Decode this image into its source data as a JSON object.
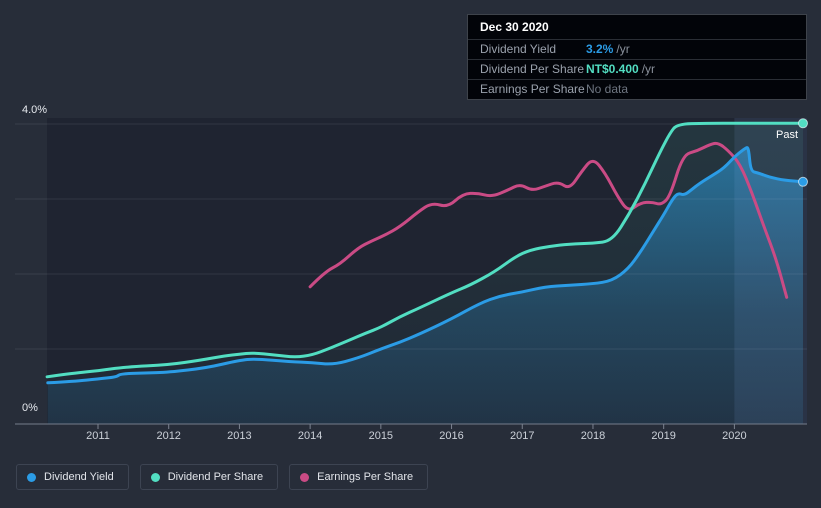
{
  "colors": {
    "dividend_yield": "#2b9ce6",
    "dividend_per_share": "#52dec2",
    "earnings_per_share": "#ca4b85",
    "muted": "#6e7580",
    "tooltip_label": "#9aa1ac",
    "axis_text": "#ccd1d9",
    "plot_background": "#1f2431",
    "page_background": "#272d39"
  },
  "tooltip": {
    "title": "Dec 30 2020",
    "rows": [
      {
        "label": "Dividend Yield",
        "value": "3.2%",
        "suffix": "/yr",
        "value_color_key": "dividend_yield"
      },
      {
        "label": "Dividend Per Share",
        "value": "NT$0.400",
        "suffix": "/yr",
        "value_color_key": "dividend_per_share"
      },
      {
        "label": "Earnings Per Share",
        "value": "No data",
        "suffix": "",
        "value_color_key": "muted"
      }
    ]
  },
  "legend": {
    "items": [
      {
        "label": "Dividend Yield",
        "color_key": "dividend_yield"
      },
      {
        "label": "Dividend Per Share",
        "color_key": "dividend_per_share"
      },
      {
        "label": "Earnings Per Share",
        "color_key": "earnings_per_share"
      }
    ]
  },
  "chart_data": {
    "type": "line",
    "past_label": "Past",
    "past_band_start_year": 2020,
    "x_ticks": [
      2011,
      2012,
      2013,
      2014,
      2015,
      2016,
      2017,
      2018,
      2019,
      2020
    ],
    "x_range": [
      2010.28,
      2021.0
    ],
    "y_axis": {
      "top_label": "4.0%",
      "bottom_label": "0%",
      "min": 0,
      "max": 4,
      "unit": "%",
      "gridlines_pct": [
        0,
        1,
        2,
        3,
        4
      ]
    },
    "notes": "Dividend Per Share plotted on same scale; flat top equals NT$0.400/yr which maps to the 4.0% line. Earnings Per Share has no data after late 2020.",
    "series": [
      {
        "key": "earnings-per-share",
        "name": "Earnings Per Share",
        "color_key": "earnings_per_share",
        "area": false,
        "end_dot": false,
        "points": [
          [
            2014.0,
            1.83
          ],
          [
            2014.21,
            2.03
          ],
          [
            2014.42,
            2.13
          ],
          [
            2014.68,
            2.35
          ],
          [
            2014.87,
            2.44
          ],
          [
            2015.06,
            2.52
          ],
          [
            2015.27,
            2.63
          ],
          [
            2015.53,
            2.83
          ],
          [
            2015.72,
            2.95
          ],
          [
            2015.95,
            2.89
          ],
          [
            2016.16,
            3.07
          ],
          [
            2016.37,
            3.08
          ],
          [
            2016.57,
            3.03
          ],
          [
            2016.8,
            3.12
          ],
          [
            2016.97,
            3.2
          ],
          [
            2017.14,
            3.11
          ],
          [
            2017.32,
            3.17
          ],
          [
            2017.51,
            3.23
          ],
          [
            2017.67,
            3.13
          ],
          [
            2017.84,
            3.37
          ],
          [
            2018.0,
            3.55
          ],
          [
            2018.17,
            3.35
          ],
          [
            2018.35,
            3.03
          ],
          [
            2018.5,
            2.83
          ],
          [
            2018.67,
            2.95
          ],
          [
            2018.84,
            2.96
          ],
          [
            2018.96,
            2.92
          ],
          [
            2019.09,
            3.03
          ],
          [
            2019.27,
            3.59
          ],
          [
            2019.47,
            3.64
          ],
          [
            2019.66,
            3.73
          ],
          [
            2019.77,
            3.75
          ],
          [
            2019.91,
            3.65
          ],
          [
            2020.08,
            3.47
          ],
          [
            2020.25,
            3.08
          ],
          [
            2020.43,
            2.6
          ],
          [
            2020.59,
            2.2
          ],
          [
            2020.74,
            1.69
          ]
        ]
      },
      {
        "key": "dividend-yield",
        "name": "Dividend Yield",
        "color_key": "dividend_yield",
        "area": true,
        "gradient_id": "blueFill",
        "end_dot": true,
        "points": [
          [
            2010.29,
            0.55
          ],
          [
            2010.67,
            0.57
          ],
          [
            2011.0,
            0.6
          ],
          [
            2011.27,
            0.63
          ],
          [
            2011.31,
            0.67
          ],
          [
            2011.66,
            0.68
          ],
          [
            2012.0,
            0.69
          ],
          [
            2012.54,
            0.75
          ],
          [
            2013.0,
            0.85
          ],
          [
            2013.22,
            0.87
          ],
          [
            2013.72,
            0.83
          ],
          [
            2014.03,
            0.82
          ],
          [
            2014.32,
            0.79
          ],
          [
            2014.68,
            0.88
          ],
          [
            2015.0,
            1.0
          ],
          [
            2015.27,
            1.09
          ],
          [
            2015.55,
            1.2
          ],
          [
            2016.0,
            1.4
          ],
          [
            2016.4,
            1.61
          ],
          [
            2016.69,
            1.71
          ],
          [
            2017.0,
            1.76
          ],
          [
            2017.32,
            1.83
          ],
          [
            2017.67,
            1.85
          ],
          [
            2018.0,
            1.87
          ],
          [
            2018.27,
            1.91
          ],
          [
            2018.5,
            2.07
          ],
          [
            2018.67,
            2.29
          ],
          [
            2018.84,
            2.55
          ],
          [
            2019.0,
            2.79
          ],
          [
            2019.12,
            2.99
          ],
          [
            2019.2,
            3.08
          ],
          [
            2019.29,
            3.05
          ],
          [
            2019.39,
            3.12
          ],
          [
            2019.51,
            3.21
          ],
          [
            2019.68,
            3.31
          ],
          [
            2019.85,
            3.41
          ],
          [
            2020.03,
            3.59
          ],
          [
            2020.16,
            3.68
          ],
          [
            2020.2,
            3.69
          ],
          [
            2020.23,
            3.37
          ],
          [
            2020.33,
            3.35
          ],
          [
            2020.5,
            3.29
          ],
          [
            2020.71,
            3.25
          ],
          [
            2020.97,
            3.23
          ]
        ]
      },
      {
        "key": "dividend-per-share",
        "name": "Dividend Per Share",
        "color_key": "dividend_per_share",
        "area": true,
        "gradient_id": "tealFill",
        "end_dot": true,
        "points": [
          [
            2010.28,
            0.63
          ],
          [
            2010.67,
            0.68
          ],
          [
            2011.0,
            0.71
          ],
          [
            2011.38,
            0.76
          ],
          [
            2012.0,
            0.79
          ],
          [
            2012.44,
            0.85
          ],
          [
            2012.8,
            0.91
          ],
          [
            2013.0,
            0.93
          ],
          [
            2013.19,
            0.95
          ],
          [
            2013.5,
            0.92
          ],
          [
            2013.79,
            0.89
          ],
          [
            2014.03,
            0.92
          ],
          [
            2014.28,
            1.01
          ],
          [
            2014.56,
            1.12
          ],
          [
            2014.78,
            1.21
          ],
          [
            2015.0,
            1.29
          ],
          [
            2015.27,
            1.43
          ],
          [
            2015.55,
            1.55
          ],
          [
            2016.0,
            1.75
          ],
          [
            2016.26,
            1.85
          ],
          [
            2016.61,
            2.03
          ],
          [
            2016.9,
            2.23
          ],
          [
            2017.11,
            2.32
          ],
          [
            2017.39,
            2.37
          ],
          [
            2017.67,
            2.4
          ],
          [
            2018.0,
            2.41
          ],
          [
            2018.27,
            2.44
          ],
          [
            2018.52,
            2.81
          ],
          [
            2018.74,
            3.21
          ],
          [
            2018.95,
            3.63
          ],
          [
            2019.09,
            3.88
          ],
          [
            2019.19,
            4.0
          ],
          [
            2019.6,
            4.01
          ],
          [
            2020.08,
            4.01
          ],
          [
            2020.97,
            4.01
          ]
        ]
      }
    ]
  }
}
